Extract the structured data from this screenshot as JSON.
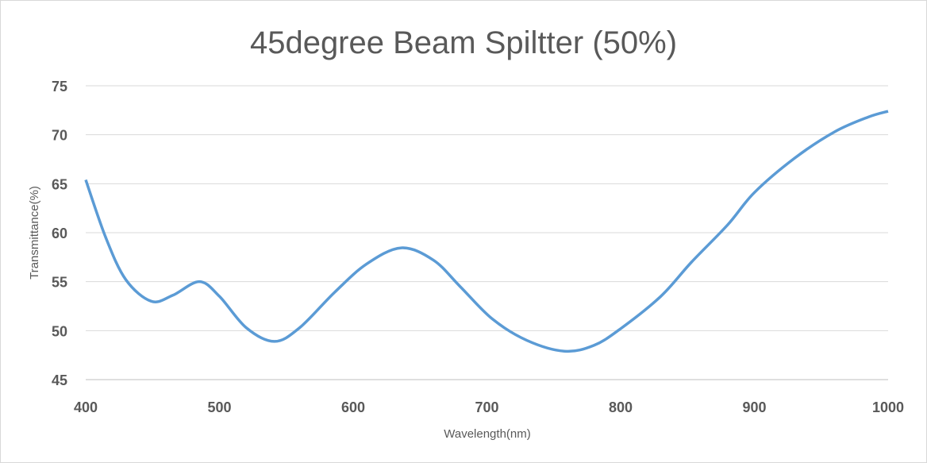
{
  "chart_data": {
    "type": "line",
    "title": "45degree Beam Spiltter (50%)",
    "xlabel": "Wavelength(nm)",
    "ylabel": "Transmittance(%)",
    "xlim": [
      400,
      1000
    ],
    "ylim": [
      45,
      75
    ],
    "xticks": [
      400,
      500,
      600,
      700,
      800,
      900,
      1000
    ],
    "yticks": [
      45,
      50,
      55,
      60,
      65,
      70,
      75
    ],
    "grid": "horizontal",
    "series": [
      {
        "name": "Transmittance",
        "color": "#5b9bd5",
        "x": [
          400,
          415,
          430,
          449,
          465,
          485,
          500,
          520,
          541,
          560,
          586,
          610,
          636,
          660,
          680,
          704,
          730,
          758,
          780,
          800,
          830,
          853,
          880,
          900,
          930,
          960,
          985,
          1000
        ],
        "y": [
          65.4,
          59.5,
          55.2,
          53.0,
          53.6,
          55.0,
          53.5,
          50.3,
          48.9,
          50.3,
          53.9,
          56.8,
          58.45,
          57.2,
          54.5,
          51.2,
          49.0,
          47.9,
          48.5,
          50.2,
          53.5,
          57.0,
          60.8,
          64.1,
          67.6,
          70.3,
          71.8,
          72.4
        ]
      }
    ]
  }
}
